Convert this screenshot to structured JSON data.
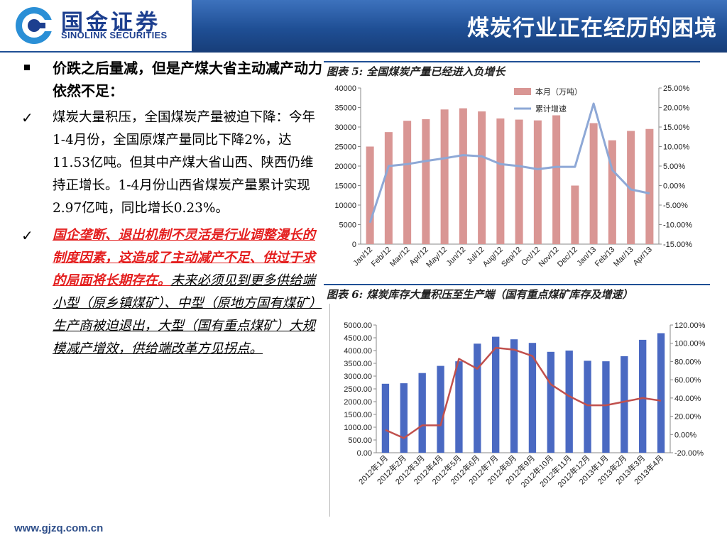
{
  "header": {
    "logo_cn": "国金证券",
    "logo_en": "SINOLINK SECURITIES",
    "title": "煤炭行业正在经历的困境"
  },
  "left": {
    "point1": "价跌之后量减，但是产煤大省主动减产动力依然不足：",
    "point2": "煤炭大量积压，全国煤炭产量被迫下降：今年1-4月份，全国原煤产量同比下降2%，达11.53亿吨。但其中产煤大省山西、陕西仍维持正增长。1-4月份山西省煤炭产量累计实现2.97亿吨，同比增长0.23%。",
    "point3_red": "国企垄断、退出机制不灵活是行业调整漫长的制度因素，这造成了主动减产不足、供过于求的局面将长期存在。",
    "point3_rest": "未来必须见到更多供给端小型（原乡镇煤矿）、中型（原地方国有煤矿）生产商被迫退出，大型（国有重点煤矿）大规模减产增效，供给端改革方见拐点。"
  },
  "footer": {
    "url": "www.gjzq.com.cn"
  },
  "colors": {
    "bar1": "#d99694",
    "line1": "#8ea8d6",
    "bar2": "#4a69c2",
    "line2": "#c0504d",
    "header": "#1f4f95"
  },
  "chart_data": [
    {
      "type": "bar",
      "title": "图表 5:  全国煤炭产量已经进入负增长",
      "categories": [
        "Jan/12",
        "Feb/12",
        "Mar/12",
        "Apr/12",
        "May/12",
        "Jun/12",
        "Jul/12",
        "Aug/12",
        "Sep/12",
        "Oct/12",
        "Nov/12",
        "Dec/12",
        "Jan/13",
        "Feb/13",
        "Mar/13",
        "Apr/13"
      ],
      "series": [
        {
          "name": "本月（万吨）",
          "kind": "bar",
          "axis": "left",
          "values": [
            25000,
            28700,
            31600,
            32000,
            34500,
            34800,
            34000,
            32200,
            31900,
            31700,
            33000,
            15000,
            31000,
            26600,
            29000,
            29500
          ]
        },
        {
          "name": "累计增速",
          "kind": "line",
          "axis": "right",
          "values": [
            -9.5,
            5.0,
            5.5,
            6.3,
            7.0,
            7.8,
            7.5,
            5.5,
            5.0,
            4.2,
            4.8,
            4.8,
            21.0,
            4.0,
            -1.0,
            -2.0
          ]
        }
      ],
      "yleft_ticks": [
        "40000",
        "35000",
        "30000",
        "25000",
        "20000",
        "15000",
        "10000",
        "5000",
        "0"
      ],
      "yright_ticks": [
        "25.00%",
        "20.00%",
        "15.00%",
        "10.00%",
        "5.00%",
        "0.00%",
        "-5.00%",
        "-10.00%",
        "-15.00%"
      ],
      "yleft_range": [
        0,
        40000
      ],
      "yright_range": [
        -15,
        25
      ],
      "legend_position": "top-right",
      "grid": false
    },
    {
      "type": "bar",
      "title": "图表 6:  煤炭库存大量积压至生产端（国有重点煤矿库存及增速）",
      "categories": [
        "2012年1月",
        "2012年2月",
        "2012年3月",
        "2012年4月",
        "2012年5月",
        "2012年6月",
        "2012年7月",
        "2012年8月",
        "2012年9月",
        "2012年10月",
        "2012年11月",
        "2012年12月",
        "2013年1月",
        "2013年2月",
        "2013年3月",
        "2013年4月"
      ],
      "series": [
        {
          "kind": "bar",
          "axis": "left",
          "values": [
            2700,
            2720,
            3120,
            3400,
            3580,
            4270,
            4540,
            4440,
            4300,
            3950,
            4000,
            3600,
            3580,
            3780,
            4420,
            4680
          ]
        },
        {
          "kind": "line",
          "axis": "right",
          "values": [
            5,
            -4,
            10,
            10,
            83,
            72,
            95,
            93,
            86,
            55,
            42,
            32,
            32,
            36,
            40,
            37
          ]
        }
      ],
      "yleft_ticks": [
        "5000.00",
        "4500.00",
        "4000.00",
        "3500.00",
        "3000.00",
        "2500.00",
        "2000.00",
        "1500.00",
        "1000.00",
        "500.00",
        "0.00"
      ],
      "yright_ticks": [
        "120.00%",
        "100.00%",
        "80.00%",
        "60.00%",
        "40.00%",
        "20.00%",
        "0.00%",
        "-20.00%"
      ],
      "yleft_range": [
        0,
        5000
      ],
      "yright_range": [
        -20,
        120
      ],
      "grid": false
    }
  ]
}
